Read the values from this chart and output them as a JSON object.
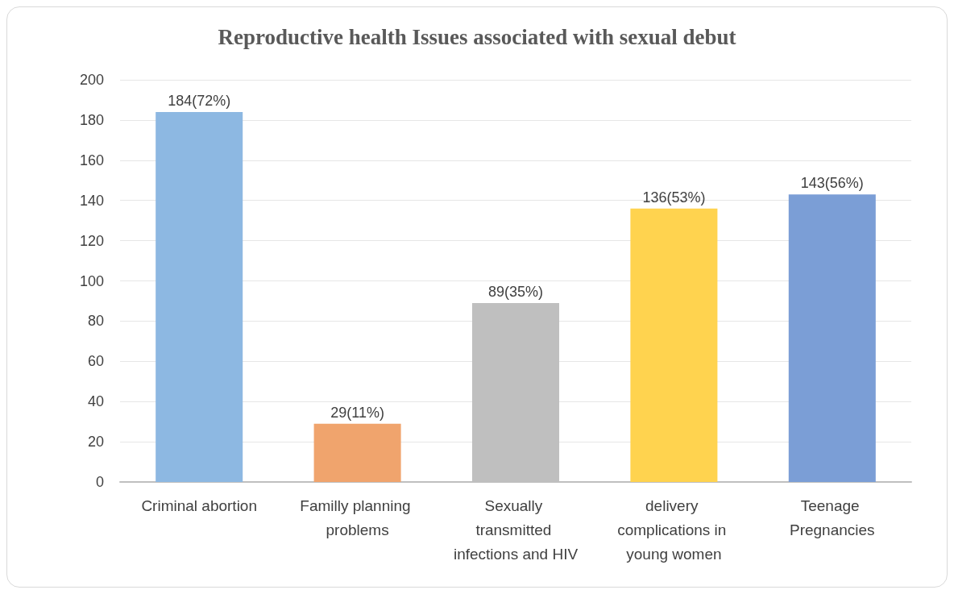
{
  "chart_data": {
    "type": "bar",
    "title": "Reproductive health Issues associated with sexual debut",
    "categories": [
      "Criminal abortion",
      "Familly planning problems",
      "Sexually transmitted infections and HIV",
      "delivery complications in young women",
      "Teenage Pregnancies"
    ],
    "values": [
      184,
      29,
      89,
      136,
      143
    ],
    "colors": [
      "#8db8e2",
      "#f0a46d",
      "#bfbfbf",
      "#ffd34f",
      "#7b9ed6"
    ],
    "value_labels": [
      "184(72%)",
      "29(11%)",
      "89(35%)",
      "136(53%)",
      "143(56%)"
    ],
    "ylim": [
      0,
      200
    ],
    "yticks": [
      0,
      20,
      40,
      60,
      80,
      100,
      120,
      140,
      160,
      180,
      200
    ],
    "grid": "y"
  }
}
